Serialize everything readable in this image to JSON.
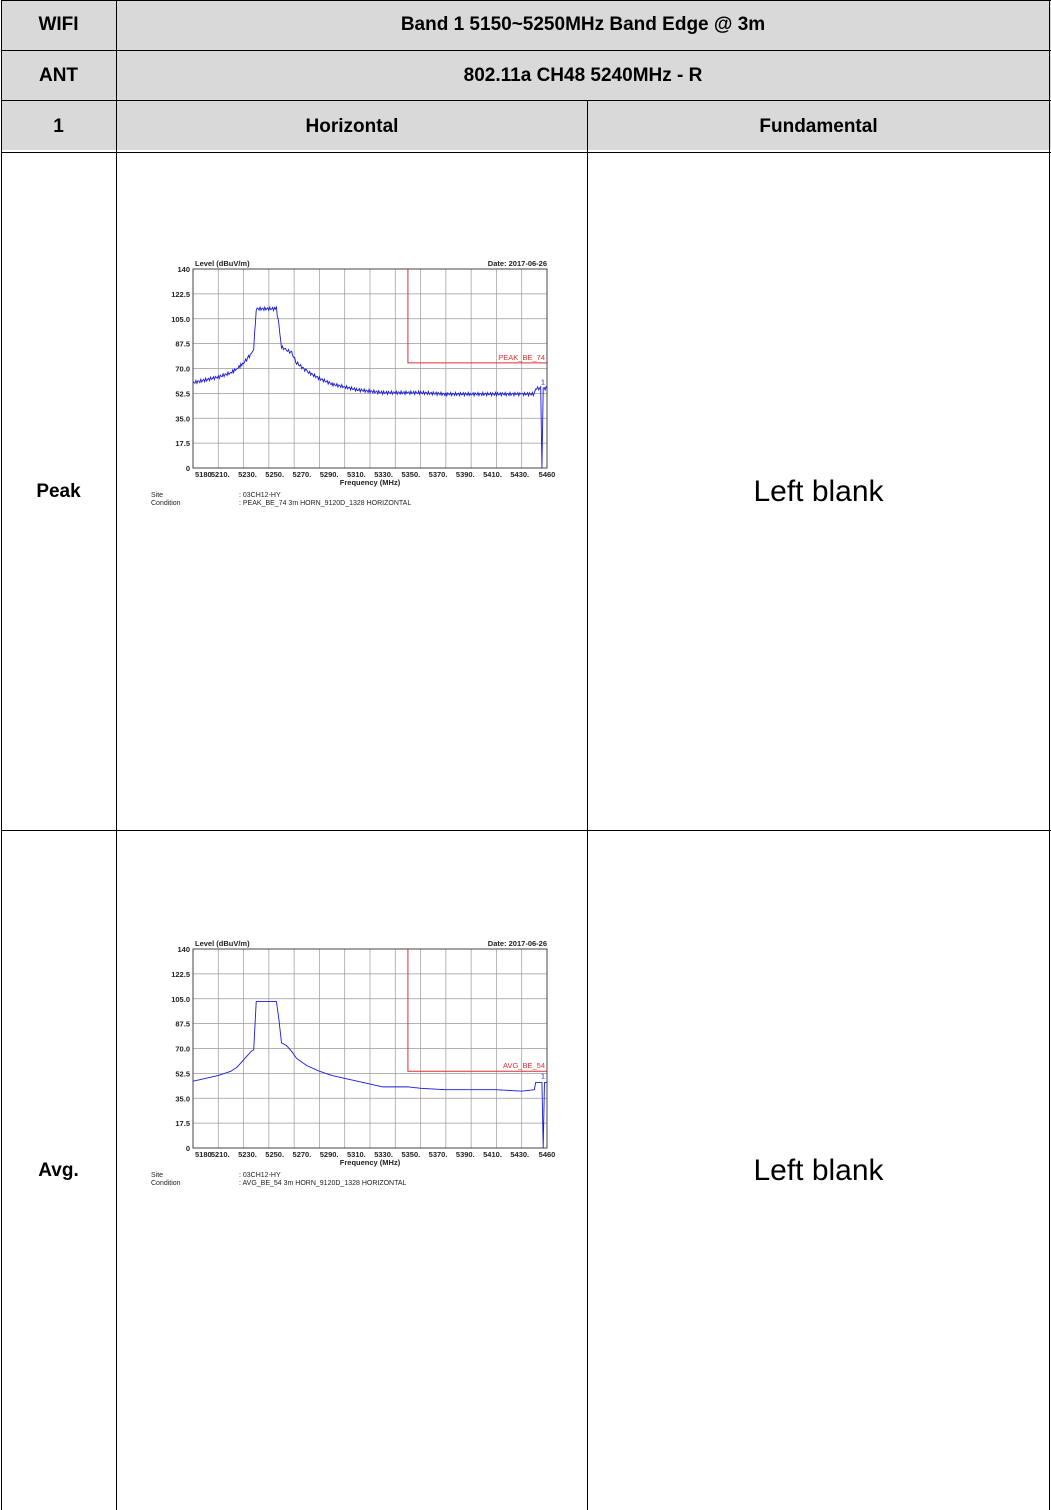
{
  "header": {
    "row1_label": "WIFI",
    "row1_title": "Band 1 5150~5250MHz Band Edge @ 3m",
    "row2_label": "ANT",
    "row2_title": "802.11a CH48 5240MHz - R",
    "row3_label": "1",
    "row3_col1": "Horizontal",
    "row3_col2": "Fundamental"
  },
  "rows": [
    {
      "label": "Peak",
      "fundamental": "Left blank"
    },
    {
      "label": "Avg.",
      "fundamental": "Left blank"
    }
  ],
  "colors": {
    "header_shade": "#d9d9d9",
    "trace": "#1a1adb",
    "limit": "#e03030",
    "grid": "#9a9a9a"
  },
  "chart_data": [
    {
      "type": "line",
      "ylabel": "Level (dBuV/m)",
      "xlabel": "Frequency (MHz)",
      "date": "Date: 2017-06-26",
      "ylim": [
        0,
        140
      ],
      "xlim": [
        5180,
        5460
      ],
      "yticks": [
        "0",
        "17.5",
        "35.0",
        "52.5",
        "70.0",
        "87.5",
        "105.0",
        "122.5",
        "140"
      ],
      "xticks": [
        "5180",
        "5210.",
        "5230.",
        "5250.",
        "5270.",
        "5290.",
        "5310.",
        "5330.",
        "5350.",
        "5370.",
        "5390.",
        "5410.",
        "5430.",
        "5460"
      ],
      "limit_line": {
        "label": "PEAK_BE_74",
        "value": 74,
        "start": 5350
      },
      "marker_label": "1",
      "site_label": "Site",
      "site_value": ": 03CH12-HY",
      "condition_label": "Condition",
      "condition_value": ": PEAK_BE_74 3m HORN_9120D_1328 HORIZONTAL",
      "series": [
        {
          "x": [
            5180,
            5190,
            5200,
            5210,
            5215,
            5220,
            5224,
            5226,
            5228,
            5230,
            5246,
            5248,
            5250,
            5254,
            5258,
            5262,
            5270,
            5280,
            5290,
            5300,
            5310,
            5320,
            5330,
            5340,
            5350,
            5360,
            5380,
            5400,
            5420,
            5440,
            5450,
            5451,
            5455,
            5456,
            5457,
            5460
          ],
          "y": [
            60,
            62,
            64,
            67,
            70,
            74,
            78,
            80,
            84,
            112,
            112,
            100,
            85,
            83,
            81,
            74,
            68,
            63,
            59,
            57,
            55,
            54,
            53,
            53,
            53,
            53,
            52,
            52,
            52,
            52,
            52,
            56,
            56,
            0,
            56,
            56
          ]
        }
      ]
    },
    {
      "type": "line",
      "ylabel": "Level (dBuV/m)",
      "xlabel": "Frequency (MHz)",
      "date": "Date: 2017-06-26",
      "ylim": [
        0,
        140
      ],
      "xlim": [
        5180,
        5460
      ],
      "yticks": [
        "0",
        "17.5",
        "35.0",
        "52.5",
        "70.0",
        "87.5",
        "105.0",
        "122.5",
        "140"
      ],
      "xticks": [
        "5180",
        "5210.",
        "5230.",
        "5250.",
        "5270.",
        "5290.",
        "5310.",
        "5330.",
        "5350.",
        "5370.",
        "5390.",
        "5410.",
        "5430.",
        "5460"
      ],
      "limit_line": {
        "label": "AVG_BE_54",
        "value": 54,
        "start": 5350
      },
      "marker_label": "1",
      "site_label": "Site",
      "site_value": ": 03CH12-HY",
      "condition_label": "Condition",
      "condition_value": ": AVG_BE_54 3m HORN_9120D_1328 HORIZONTAL",
      "series": [
        {
          "x": [
            5180,
            5190,
            5200,
            5210,
            5215,
            5220,
            5224,
            5226,
            5228,
            5230,
            5246,
            5248,
            5250,
            5254,
            5258,
            5262,
            5270,
            5280,
            5290,
            5300,
            5310,
            5320,
            5330,
            5340,
            5350,
            5360,
            5380,
            5400,
            5420,
            5440,
            5450,
            5451,
            5456,
            5457,
            5458,
            5460
          ],
          "y": [
            47,
            49,
            51,
            54,
            57,
            62,
            66,
            68,
            69,
            103,
            103,
            90,
            74,
            72,
            68,
            63,
            58,
            54,
            51,
            49,
            47,
            45,
            43,
            43,
            43,
            42,
            41,
            41,
            41,
            40,
            41,
            46,
            46,
            0,
            46,
            46
          ]
        }
      ]
    }
  ]
}
